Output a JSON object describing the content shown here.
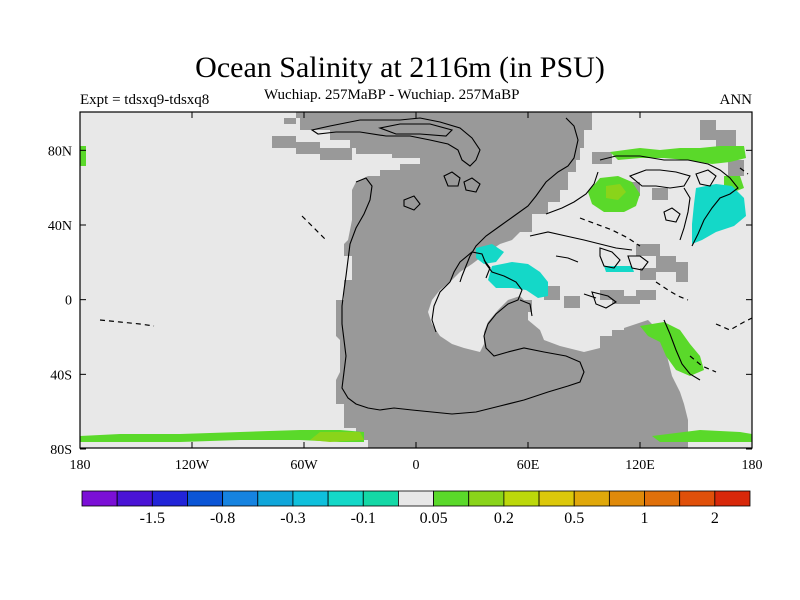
{
  "title": "Ocean Salinity at 2116m (in PSU)",
  "experiment": "Expt = tdsxq9-tdsxq8",
  "subtitle": "Wuchiap. 257MaBP - Wuchiap. 257MaBP",
  "season": "ANN",
  "lat_ticks": [
    "80N",
    "40N",
    "0",
    "40S",
    "80S"
  ],
  "lon_ticks": [
    "180",
    "120W",
    "60W",
    "0",
    "60E",
    "120E",
    "180"
  ],
  "colorbar": {
    "colors": [
      "#7b0fd6",
      "#4a13d6",
      "#2224d8",
      "#0b55d6",
      "#1683e0",
      "#0fa6da",
      "#0fc0dc",
      "#14d8c8",
      "#14d8a6",
      "#e8e8e8",
      "#5ad92a",
      "#8ad41a",
      "#bcd80a",
      "#dcc80a",
      "#e0a80a",
      "#e08a0a",
      "#e0700a",
      "#e0500a",
      "#d8280a"
    ],
    "labels": [
      "-1.5",
      "-0.8",
      "-0.3",
      "-0.1",
      "0.05",
      "0.2",
      "0.5",
      "1",
      "2"
    ]
  },
  "legend_colors": {
    "land": "#999999",
    "ocean": "#e8e8e8",
    "green": "#5ad92a",
    "yellowgreen": "#8ad41a",
    "cyan": "#14d8c8"
  }
}
